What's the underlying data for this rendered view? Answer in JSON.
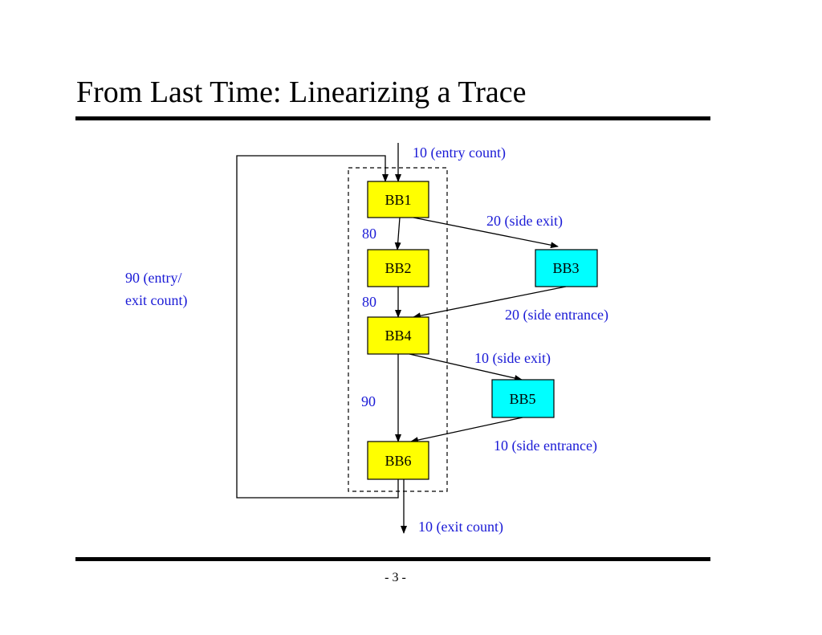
{
  "slide": {
    "title": "From Last Time: Linearizing a Trace",
    "page_number": "- 3 -"
  },
  "diagram": {
    "blocks": {
      "bb1": "BB1",
      "bb2": "BB2",
      "bb3": "BB3",
      "bb4": "BB4",
      "bb5": "BB5",
      "bb6": "BB6"
    },
    "edge_labels": {
      "entry_count": "10 (entry count)",
      "side_exit_1": "20 (side exit)",
      "bb1_bb2": "80",
      "bb2_bb4": "80",
      "side_entrance_1": "20 (side entrance)",
      "side_exit_2": "10 (side exit)",
      "bb4_bb6": "90",
      "side_entrance_2": "10 (side entrance)",
      "exit_count": "10 (exit count)",
      "loop_line1": "90 (entry/",
      "loop_line2": "exit count)"
    },
    "colors": {
      "trace_block": "#ffff00",
      "side_block": "#00ffff",
      "label": "#1a1ad6"
    }
  }
}
